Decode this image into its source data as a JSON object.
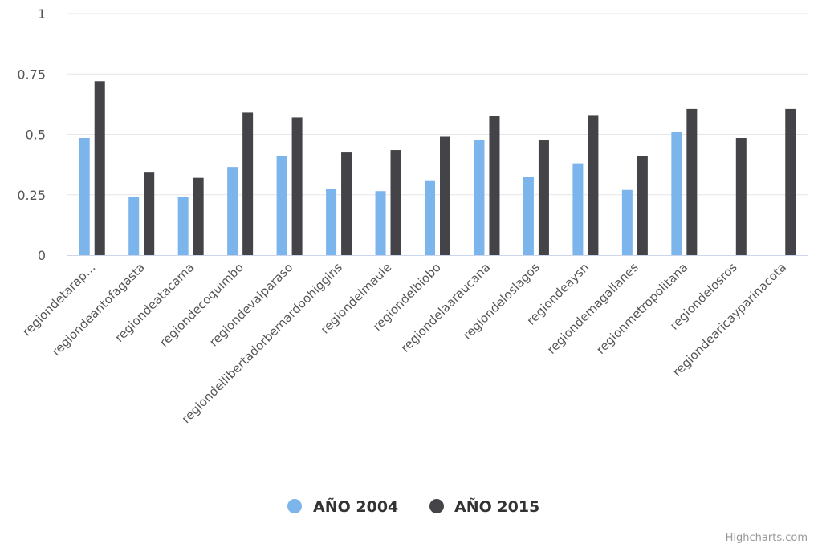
{
  "chart_data": {
    "type": "bar",
    "title": "",
    "xlabel": "",
    "ylabel": "",
    "ylim": [
      0,
      1
    ],
    "yticks": [
      "0",
      "0.25",
      "0.5",
      "0.75",
      "1"
    ],
    "grid": true,
    "legend_position": "bottom-center",
    "categories": [
      "regiondetarap…",
      "regiondeantofagasta",
      "regiondeatacama",
      "regiondecoquimbo",
      "regiondevalparaso",
      "regiondellibertadorbernardoohiggins",
      "regiondelmaule",
      "regiondelbiobo",
      "regiondelaaraucana",
      "regiondeloslagos",
      "regiondeaysn",
      "regiondemagallanes",
      "regionmetropolitana",
      "regiondelosros",
      "regiondearicayparinacota"
    ],
    "series": [
      {
        "name": "AÑO 2004",
        "color": "#7cb5ec",
        "values": [
          0.485,
          0.24,
          0.24,
          0.365,
          0.41,
          0.275,
          0.265,
          0.31,
          0.475,
          0.325,
          0.38,
          0.27,
          0.51,
          null,
          null
        ]
      },
      {
        "name": "AÑO 2015",
        "color": "#434348",
        "values": [
          0.72,
          0.345,
          0.32,
          0.59,
          0.57,
          0.425,
          0.435,
          0.49,
          0.575,
          0.475,
          0.58,
          0.41,
          0.605,
          0.485,
          0.605
        ]
      }
    ]
  },
  "credits": "Highcharts.com"
}
